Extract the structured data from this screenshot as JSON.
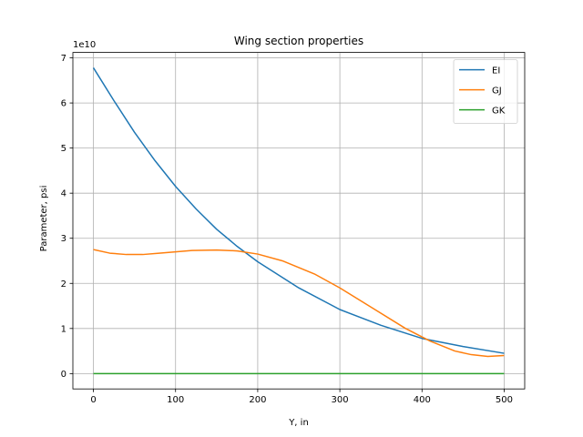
{
  "chart_data": {
    "type": "line",
    "title": "Wing section properties",
    "xlabel": "Y, in",
    "ylabel": "Parameter, psi",
    "y_scale_label": "1e10",
    "xlim": [
      -25,
      525
    ],
    "ylim": [
      -0.34,
      7.12
    ],
    "x_ticks": [
      0,
      100,
      200,
      300,
      400,
      500
    ],
    "y_ticks": [
      0,
      1,
      2,
      3,
      4,
      5,
      6,
      7
    ],
    "grid": true,
    "legend_position": "top-right",
    "series": [
      {
        "name": "EI",
        "color": "#1f77b4",
        "x": [
          0,
          25,
          50,
          75,
          100,
          125,
          150,
          175,
          200,
          250,
          300,
          350,
          400,
          450,
          500
        ],
        "y": [
          6.78,
          6.05,
          5.35,
          4.72,
          4.15,
          3.65,
          3.2,
          2.82,
          2.48,
          1.9,
          1.42,
          1.07,
          0.78,
          0.6,
          0.45
        ]
      },
      {
        "name": "GJ",
        "color": "#ff7f0e",
        "x": [
          0,
          20,
          40,
          60,
          80,
          100,
          120,
          150,
          175,
          200,
          230,
          270,
          300,
          340,
          380,
          410,
          440,
          460,
          480,
          500
        ],
        "y": [
          2.75,
          2.67,
          2.64,
          2.64,
          2.67,
          2.7,
          2.73,
          2.74,
          2.72,
          2.65,
          2.5,
          2.2,
          1.9,
          1.45,
          1.0,
          0.72,
          0.5,
          0.42,
          0.38,
          0.4
        ]
      },
      {
        "name": "GK",
        "color": "#2ca02c",
        "x": [
          0,
          100,
          200,
          300,
          400,
          500
        ],
        "y": [
          0,
          0,
          0,
          0,
          0,
          0
        ]
      }
    ]
  }
}
